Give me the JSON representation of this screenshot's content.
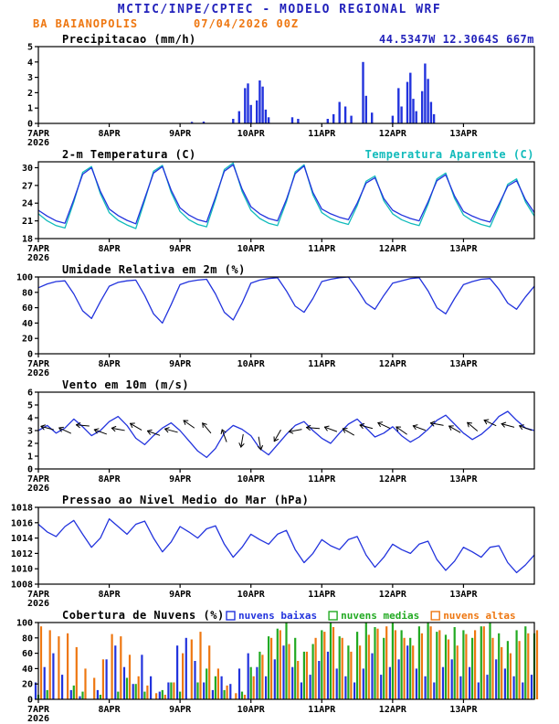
{
  "header": {
    "title": "MCTIC/INPE/CPTEC - MODELO REGIONAL WRF",
    "station": "BA BAIANOPOLIS",
    "run": "07/04/2026 00Z",
    "coords": "44.5347W 12.3064S 667m"
  },
  "colors": {
    "title_blue": "#2222bb",
    "orange": "#ee7711",
    "line_blue": "#2233dd",
    "cyan": "#11bbbb",
    "green": "#22aa22",
    "black": "#000000"
  },
  "x_axis": {
    "start_hour": 0,
    "end_hour": 168,
    "tick_hours": [
      0,
      24,
      48,
      72,
      96,
      120,
      144
    ],
    "tick_labels": [
      "7APR",
      "8APR",
      "9APR",
      "10APR",
      "11APR",
      "12APR",
      "13APR"
    ],
    "year_label": "2026"
  },
  "chart_data": [
    {
      "id": "precipitacao",
      "type": "bar",
      "title": "Precipitacao (mm/h)",
      "right_title": {
        "text": "44.5347W 12.3064S 667m",
        "color": "title_blue"
      },
      "ylim": [
        0,
        5
      ],
      "yticks": [
        0,
        1,
        2,
        3,
        4,
        5
      ],
      "bar_color": "line_blue",
      "bars": [
        [
          52,
          0.1
        ],
        [
          56,
          0.12
        ],
        [
          66,
          0.3
        ],
        [
          68,
          0.8
        ],
        [
          70,
          2.3
        ],
        [
          71,
          2.6
        ],
        [
          72,
          1.2
        ],
        [
          74,
          1.5
        ],
        [
          75,
          2.8
        ],
        [
          76,
          2.4
        ],
        [
          77,
          0.9
        ],
        [
          78,
          0.4
        ],
        [
          86,
          0.4
        ],
        [
          88,
          0.3
        ],
        [
          98,
          0.3
        ],
        [
          100,
          0.6
        ],
        [
          102,
          1.4
        ],
        [
          104,
          1.1
        ],
        [
          106,
          0.5
        ],
        [
          110,
          4.0
        ],
        [
          111,
          1.8
        ],
        [
          113,
          0.7
        ],
        [
          120,
          0.5
        ],
        [
          122,
          2.3
        ],
        [
          123,
          1.1
        ],
        [
          125,
          2.7
        ],
        [
          126,
          3.3
        ],
        [
          127,
          1.6
        ],
        [
          128,
          0.8
        ],
        [
          130,
          2.1
        ],
        [
          131,
          3.9
        ],
        [
          132,
          2.9
        ],
        [
          133,
          1.4
        ],
        [
          134,
          0.6
        ]
      ]
    },
    {
      "id": "temperatura",
      "type": "line",
      "title": "2-m Temperatura (C)",
      "right_title": {
        "text": "Temperatura Aparente (C)",
        "color": "cyan"
      },
      "ylim": [
        18,
        31
      ],
      "yticks": [
        18,
        21,
        24,
        27,
        30
      ],
      "x_step": 3,
      "series": [
        {
          "name": "Temperatura Aparente (C)",
          "color": "cyan",
          "values": [
            22.2,
            21.0,
            20.2,
            19.8,
            24.2,
            29.2,
            30.2,
            25.6,
            22.4,
            21.1,
            20.3,
            19.7,
            24.4,
            29.4,
            30.4,
            25.8,
            22.6,
            21.2,
            20.4,
            20.0,
            24.6,
            29.7,
            30.8,
            26.0,
            22.8,
            21.4,
            20.6,
            20.2,
            24.2,
            29.3,
            30.5,
            25.4,
            22.4,
            21.4,
            20.8,
            20.4,
            23.6,
            27.7,
            28.6,
            24.4,
            22.2,
            21.2,
            20.6,
            20.2,
            23.8,
            28.1,
            29.1,
            24.8,
            22.0,
            21.0,
            20.4,
            20.0,
            23.4,
            27.2,
            28.1,
            24.2,
            21.8
          ]
        },
        {
          "name": "2-m Temperatura (C)",
          "color": "line_blue",
          "values": [
            22.8,
            21.8,
            21.0,
            20.6,
            24.6,
            28.9,
            30.0,
            26.0,
            23.0,
            21.9,
            21.1,
            20.5,
            24.8,
            29.1,
            30.2,
            26.2,
            23.2,
            22.0,
            21.2,
            20.8,
            25.0,
            29.4,
            30.5,
            26.4,
            23.4,
            22.2,
            21.4,
            21.0,
            24.6,
            29.0,
            30.3,
            25.8,
            23.0,
            22.2,
            21.6,
            21.2,
            24.0,
            27.4,
            28.3,
            24.8,
            22.8,
            22.0,
            21.4,
            21.0,
            24.2,
            27.8,
            28.8,
            25.2,
            22.6,
            21.8,
            21.2,
            20.8,
            23.8,
            26.9,
            27.8,
            24.6,
            22.4
          ]
        }
      ]
    },
    {
      "id": "umidade",
      "type": "line",
      "title": "Umidade Relativa em 2m (%)",
      "ylim": [
        0,
        100
      ],
      "yticks": [
        0,
        20,
        40,
        60,
        80,
        100
      ],
      "x_step": 3,
      "series": [
        {
          "name": "Umidade Relativa",
          "color": "line_blue",
          "values": [
            86,
            91,
            94,
            95,
            78,
            56,
            46,
            68,
            88,
            93,
            95,
            96,
            76,
            52,
            40,
            64,
            90,
            94,
            96,
            97,
            78,
            54,
            44,
            66,
            92,
            96,
            98,
            99,
            82,
            62,
            54,
            72,
            94,
            97,
            99,
            100,
            84,
            66,
            58,
            76,
            92,
            95,
            98,
            99,
            82,
            60,
            52,
            72,
            90,
            94,
            97,
            98,
            84,
            66,
            58,
            74,
            88
          ]
        }
      ]
    },
    {
      "id": "vento",
      "type": "line",
      "title": "Vento em 10m (m/s)",
      "ylim": [
        0,
        6
      ],
      "yticks": [
        0,
        1,
        2,
        3,
        4,
        5,
        6
      ],
      "x_step": 3,
      "series": [
        {
          "name": "Velocidade do vento",
          "color": "line_blue",
          "values": [
            3.0,
            3.4,
            2.8,
            3.2,
            3.9,
            3.3,
            2.6,
            3.0,
            3.7,
            4.1,
            3.4,
            2.4,
            1.9,
            2.6,
            3.2,
            3.6,
            3.0,
            2.2,
            1.4,
            0.9,
            1.6,
            2.8,
            3.4,
            3.1,
            2.6,
            1.6,
            1.1,
            1.9,
            2.7,
            3.4,
            3.7,
            3.0,
            2.4,
            2.0,
            2.8,
            3.5,
            3.9,
            3.2,
            2.5,
            2.8,
            3.3,
            2.6,
            2.1,
            2.5,
            3.1,
            3.8,
            4.2,
            3.5,
            2.8,
            2.3,
            2.7,
            3.3,
            4.1,
            4.5,
            3.8,
            3.2,
            3.0
          ]
        }
      ],
      "barb_color": "black",
      "barbs": [
        [
          3,
          3.2,
          195
        ],
        [
          9,
          3.0,
          205
        ],
        [
          15,
          3.4,
          185
        ],
        [
          21,
          2.9,
          200
        ],
        [
          27,
          3.1,
          190
        ],
        [
          33,
          3.3,
          210
        ],
        [
          39,
          2.8,
          200
        ],
        [
          45,
          3.0,
          195
        ],
        [
          51,
          3.5,
          215
        ],
        [
          57,
          3.2,
          230
        ],
        [
          63,
          2.6,
          250
        ],
        [
          69,
          2.2,
          100
        ],
        [
          75,
          2.0,
          80
        ],
        [
          81,
          2.6,
          120
        ],
        [
          87,
          3.0,
          170
        ],
        [
          93,
          3.2,
          185
        ],
        [
          99,
          3.1,
          200
        ],
        [
          105,
          2.9,
          210
        ],
        [
          111,
          3.3,
          195
        ],
        [
          117,
          3.4,
          205
        ],
        [
          123,
          3.0,
          215
        ],
        [
          129,
          3.2,
          200
        ],
        [
          135,
          3.5,
          190
        ],
        [
          141,
          3.1,
          210
        ],
        [
          147,
          3.3,
          220
        ],
        [
          153,
          3.6,
          205
        ],
        [
          159,
          3.4,
          195
        ],
        [
          165,
          3.2,
          200
        ]
      ]
    },
    {
      "id": "pressao",
      "type": "line",
      "title": "Pressao ao Nivel Medio do Mar (hPa)",
      "ylim": [
        1008,
        1018
      ],
      "yticks": [
        1008,
        1010,
        1012,
        1014,
        1016,
        1018
      ],
      "x_step": 3,
      "series": [
        {
          "name": "Pressao ao nivel medio do mar",
          "color": "line_blue",
          "values": [
            1015.8,
            1014.8,
            1014.2,
            1015.5,
            1016.3,
            1014.5,
            1012.8,
            1014.0,
            1016.5,
            1015.5,
            1014.5,
            1015.8,
            1016.2,
            1014.0,
            1012.2,
            1013.5,
            1015.5,
            1014.8,
            1014.0,
            1015.2,
            1015.6,
            1013.2,
            1011.5,
            1012.8,
            1014.5,
            1013.8,
            1013.2,
            1014.5,
            1015.0,
            1012.5,
            1010.8,
            1012.0,
            1013.8,
            1013.0,
            1012.5,
            1013.8,
            1014.2,
            1011.8,
            1010.2,
            1011.5,
            1013.2,
            1012.5,
            1012.0,
            1013.2,
            1013.6,
            1011.2,
            1009.8,
            1011.0,
            1012.8,
            1012.2,
            1011.5,
            1012.8,
            1013.0,
            1010.8,
            1009.5,
            1010.5,
            1011.8
          ]
        }
      ]
    },
    {
      "id": "nuvens",
      "type": "grouped-bar",
      "title": "Cobertura de Nuvens (%)",
      "legend": [
        {
          "label": "nuvens baixas",
          "color": "line_blue"
        },
        {
          "label": "nuvens medias",
          "color": "green"
        },
        {
          "label": "nuvens altas",
          "color": "orange"
        }
      ],
      "ylim": [
        0,
        100
      ],
      "yticks": [
        0,
        20,
        40,
        60,
        80,
        100
      ],
      "x_step": 3,
      "series": [
        {
          "name": "nuvens altas",
          "color": "orange",
          "dx": 3,
          "values": [
            95,
            90,
            82,
            86,
            68,
            40,
            28,
            52,
            85,
            82,
            58,
            30,
            18,
            8,
            6,
            22,
            60,
            78,
            88,
            70,
            40,
            18,
            8,
            6,
            30,
            58,
            80,
            90,
            72,
            50,
            62,
            80,
            88,
            94,
            80,
            62,
            70,
            84,
            92,
            95,
            90,
            80,
            70,
            86,
            95,
            90,
            78,
            70,
            85,
            90,
            95,
            80,
            68,
            60,
            76,
            86,
            90
          ]
        },
        {
          "name": "nuvens medias",
          "color": "green",
          "dx": 0,
          "values": [
            6,
            12,
            0,
            0,
            18,
            10,
            0,
            6,
            0,
            10,
            28,
            20,
            10,
            0,
            12,
            22,
            10,
            0,
            22,
            40,
            30,
            12,
            0,
            10,
            42,
            62,
            82,
            92,
            100,
            80,
            62,
            72,
            90,
            100,
            82,
            70,
            88,
            100,
            94,
            80,
            100,
            90,
            80,
            95,
            100,
            88,
            84,
            94,
            90,
            80,
            95,
            100,
            86,
            76,
            90,
            95,
            86
          ]
        },
        {
          "name": "nuvens baixas",
          "color": "line_blue",
          "dx": -3,
          "values": [
            22,
            42,
            60,
            32,
            12,
            4,
            0,
            12,
            52,
            70,
            42,
            20,
            58,
            30,
            10,
            22,
            70,
            80,
            50,
            22,
            12,
            30,
            20,
            40,
            60,
            42,
            30,
            52,
            70,
            42,
            22,
            32,
            50,
            62,
            40,
            30,
            22,
            40,
            60,
            32,
            42,
            52,
            70,
            40,
            30,
            22,
            42,
            52,
            30,
            42,
            22,
            32,
            52,
            40,
            30,
            22,
            32
          ]
        }
      ]
    }
  ]
}
